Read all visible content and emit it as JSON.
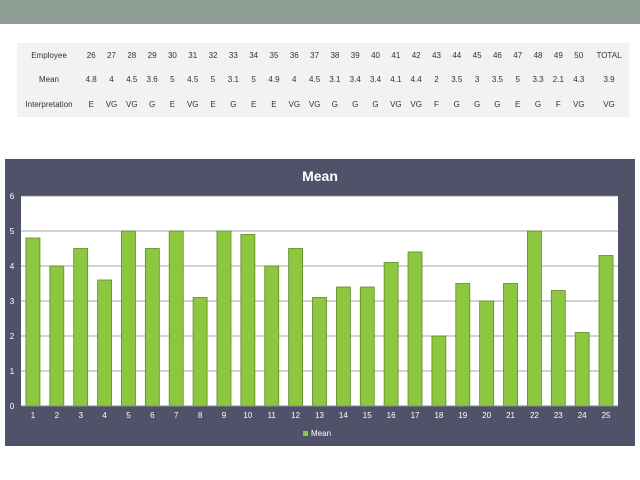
{
  "table": {
    "header_label": "Employee",
    "mean_label": "Mean",
    "interp_label": "Interpretation",
    "employees": [
      "26",
      "27",
      "28",
      "29",
      "30",
      "31",
      "32",
      "33",
      "34",
      "35",
      "36",
      "37",
      "38",
      "39",
      "40",
      "41",
      "42",
      "43",
      "44",
      "45",
      "46",
      "47",
      "48",
      "49",
      "50"
    ],
    "total_label": "TOTAL",
    "means": [
      "4.8",
      "4",
      "4.5",
      "3.6",
      "5",
      "4.5",
      "5",
      "3.1",
      "5",
      "4.9",
      "4",
      "4.5",
      "3.1",
      "3.4",
      "3.4",
      "4.1",
      "4.4",
      "2",
      "3.5",
      "3",
      "3.5",
      "5",
      "3.3",
      "2.1",
      "4.3"
    ],
    "total_mean": "3.9",
    "interpretations": [
      "E",
      "VG",
      "VG",
      "G",
      "E",
      "VG",
      "E",
      "G",
      "E",
      "E",
      "VG",
      "VG",
      "G",
      "G",
      "G",
      "VG",
      "VG",
      "F",
      "G",
      "G",
      "G",
      "E",
      "G",
      "F",
      "VG"
    ],
    "total_interp": "VG"
  },
  "colors": {
    "topbar": "#8e9e94",
    "panel": "#4f5268",
    "bar": "#8dc63f",
    "bar_border": "#5e8a24",
    "plot_bg": "#ffffff"
  },
  "chart_data": {
    "type": "bar",
    "title": "Mean",
    "categories": [
      "1",
      "2",
      "3",
      "4",
      "5",
      "6",
      "7",
      "8",
      "9",
      "10",
      "11",
      "12",
      "13",
      "14",
      "15",
      "16",
      "17",
      "18",
      "19",
      "20",
      "21",
      "22",
      "23",
      "24",
      "25"
    ],
    "series": [
      {
        "name": "Mean",
        "values": [
          4.8,
          4,
          4.5,
          3.6,
          5,
          4.5,
          5,
          3.1,
          5,
          4.9,
          4,
          4.5,
          3.1,
          3.4,
          3.4,
          4.1,
          4.4,
          2,
          3.5,
          3,
          3.5,
          5,
          3.3,
          2.1,
          4.3
        ]
      }
    ],
    "ylim": [
      0,
      6
    ],
    "yticks": [
      "0",
      "1",
      "2",
      "3",
      "4",
      "5",
      "6"
    ],
    "grid": true,
    "legend": "bottom"
  }
}
